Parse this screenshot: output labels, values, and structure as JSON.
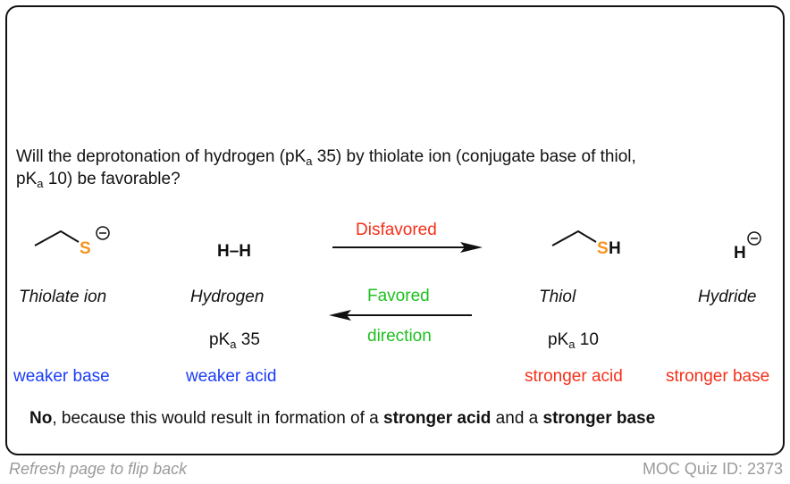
{
  "question": {
    "line1_pre": "Will the deprotonation of hydrogen (pK",
    "sub": "a",
    "line1_post": " 35) by thiolate ion (conjugate base of thiol,",
    "line2_pre": "pK",
    "line2_post": " 10) be favorable?"
  },
  "species": [
    {
      "name": "Thiolate ion",
      "formula_atom": "S",
      "charge": "⊖",
      "role": "weaker base",
      "role_color": "#1a3cf5"
    },
    {
      "name": "Hydrogen",
      "formula": "H–H",
      "pka_label": "pK",
      "pka_sub": "a",
      "pka_value": "35",
      "role": "weaker acid",
      "role_color": "#1a3cf5"
    },
    {
      "name": "Thiol",
      "formula_atom": "S",
      "formula_h": "H",
      "pka_label": "pK",
      "pka_sub": "a",
      "pka_value": "10",
      "role": "stronger acid",
      "role_color": "#f5301a"
    },
    {
      "name": "Hydride",
      "formula": "H",
      "charge": "⊖",
      "role": "stronger base",
      "role_color": "#f5301a"
    }
  ],
  "arrows": {
    "forward_label": "Disfavored",
    "reverse_label_1": "Favored",
    "reverse_label_2": "direction"
  },
  "conclusion": {
    "no": "No",
    "part1": ", because this would result in formation of a ",
    "acid": "stronger acid",
    "part2": " and a ",
    "base": "stronger base"
  },
  "footer": {
    "left": "Refresh page to flip back",
    "right": "MOC Quiz ID: 2373"
  },
  "colors": {
    "sulfur": "#f7931e",
    "blue": "#1a3cf5",
    "red": "#f5301a",
    "green": "#1fc01f"
  }
}
